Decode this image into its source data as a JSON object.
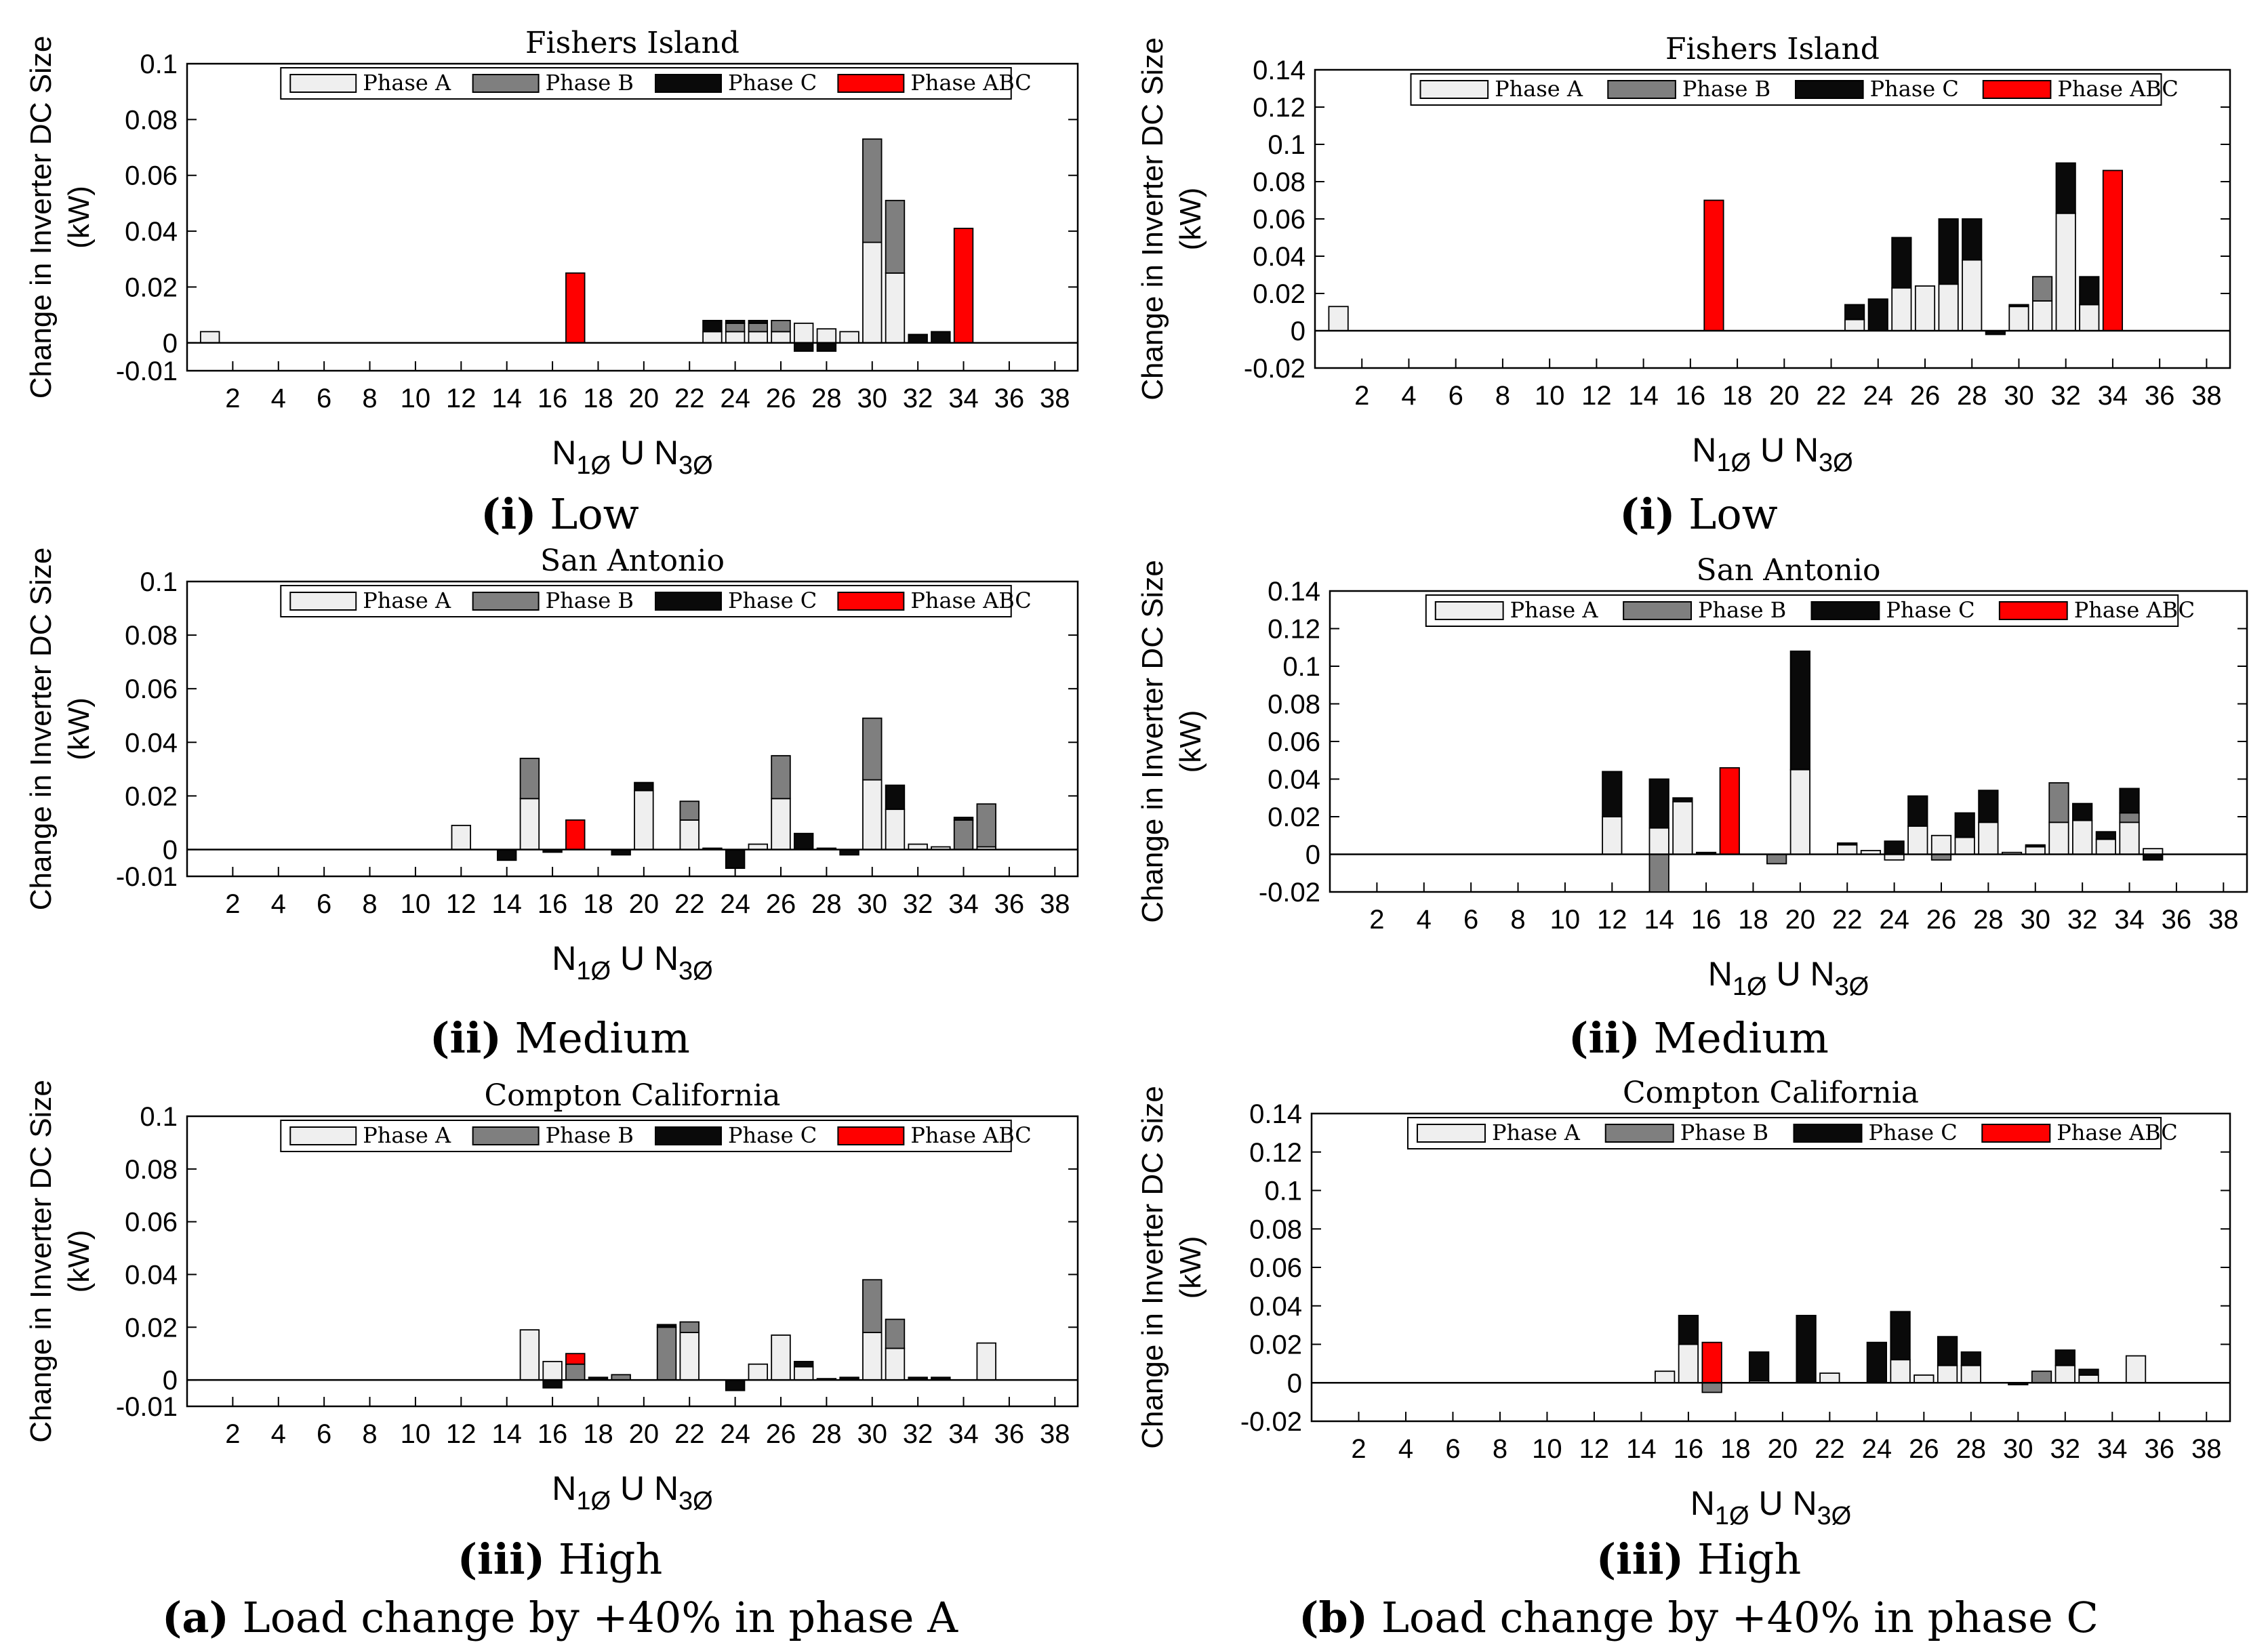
{
  "colors": {
    "phase_a": "#efefef",
    "phase_b": "#7f7f7f",
    "phase_c": "#0a0a0a",
    "phase_abc": "#ff0000",
    "axis": "#000000"
  },
  "legend_labels": [
    "Phase A",
    "Phase B",
    "Phase C",
    "Phase ABC"
  ],
  "xlabel": {
    "main": "N",
    "sub1": "1Ø",
    "union": " U N",
    "sub3": "3Ø"
  },
  "ylabel": {
    "line1": "Change in Inverter DC Size",
    "line2": "(kW)"
  },
  "captions": {
    "a": {
      "bold": "(a)",
      "text": " Load change by +40% in phase A"
    },
    "b": {
      "bold": "(b)",
      "text": " Load change by +40% in phase C"
    }
  },
  "subcaptions": [
    {
      "bold": "(i)",
      "text": " Low"
    },
    {
      "bold": "(ii)",
      "text": " Medium"
    },
    {
      "bold": "(iii)",
      "text": " High"
    }
  ],
  "chart_data": [
    {
      "id": "a-low",
      "type": "bar",
      "stacked": true,
      "title": "Fishers Island",
      "ylim": [
        -0.01,
        0.1
      ],
      "yticks": [
        -0.01,
        0,
        0.02,
        0.04,
        0.06,
        0.08,
        0.1
      ],
      "xlim": [
        0,
        39
      ],
      "xticks": [
        2,
        4,
        6,
        8,
        10,
        12,
        14,
        16,
        18,
        20,
        22,
        24,
        26,
        28,
        30,
        32,
        34,
        36,
        38
      ],
      "legend_position": "top",
      "bars": [
        {
          "n": 1,
          "a": 0.004
        },
        {
          "n": 17,
          "abc": 0.025
        },
        {
          "n": 23,
          "a": 0.004,
          "c": 0.004
        },
        {
          "n": 24,
          "a": 0.004,
          "b": 0.003,
          "c": 0.001
        },
        {
          "n": 25,
          "a": 0.004,
          "b": 0.003,
          "c": 0.001
        },
        {
          "n": 26,
          "a": 0.004,
          "b": 0.004
        },
        {
          "n": 27,
          "a": 0.007,
          "c": -0.003
        },
        {
          "n": 28,
          "a": 0.005,
          "c": -0.003
        },
        {
          "n": 29,
          "a": 0.004
        },
        {
          "n": 30,
          "a": 0.036,
          "b": 0.037
        },
        {
          "n": 31,
          "a": 0.025,
          "b": 0.026
        },
        {
          "n": 32,
          "c": 0.003
        },
        {
          "n": 33,
          "c": 0.004
        },
        {
          "n": 34,
          "abc": 0.041
        }
      ]
    },
    {
      "id": "b-low",
      "type": "bar",
      "stacked": true,
      "title": "Fishers Island",
      "ylim": [
        -0.02,
        0.14
      ],
      "yticks": [
        -0.02,
        0,
        0.02,
        0.04,
        0.06,
        0.08,
        0.1,
        0.12,
        0.14
      ],
      "xlim": [
        0,
        39
      ],
      "xticks": [
        2,
        4,
        6,
        8,
        10,
        12,
        14,
        16,
        18,
        20,
        22,
        24,
        26,
        28,
        30,
        32,
        34,
        36,
        38
      ],
      "legend_position": "top",
      "bars": [
        {
          "n": 1,
          "a": 0.013
        },
        {
          "n": 17,
          "abc": 0.07
        },
        {
          "n": 23,
          "a": 0.006,
          "c": 0.008
        },
        {
          "n": 24,
          "c": 0.017
        },
        {
          "n": 25,
          "a": 0.023,
          "c": 0.027
        },
        {
          "n": 26,
          "a": 0.024
        },
        {
          "n": 27,
          "a": 0.025,
          "c": 0.035
        },
        {
          "n": 28,
          "a": 0.038,
          "c": 0.022
        },
        {
          "n": 29,
          "c": -0.002
        },
        {
          "n": 30,
          "a": 0.013,
          "c": 0.001
        },
        {
          "n": 31,
          "a": 0.016,
          "b": 0.013
        },
        {
          "n": 32,
          "a": 0.063,
          "c": 0.027
        },
        {
          "n": 33,
          "a": 0.014,
          "c": 0.015
        },
        {
          "n": 34,
          "abc": 0.086
        }
      ]
    },
    {
      "id": "a-medium",
      "type": "bar",
      "stacked": true,
      "title": "San Antonio",
      "ylim": [
        -0.01,
        0.1
      ],
      "yticks": [
        -0.01,
        0,
        0.02,
        0.04,
        0.06,
        0.08,
        0.1
      ],
      "xlim": [
        0,
        39
      ],
      "xticks": [
        2,
        4,
        6,
        8,
        10,
        12,
        14,
        16,
        18,
        20,
        22,
        24,
        26,
        28,
        30,
        32,
        34,
        36,
        38
      ],
      "legend_position": "top",
      "bars": [
        {
          "n": 12,
          "a": 0.009
        },
        {
          "n": 14,
          "c": -0.004
        },
        {
          "n": 15,
          "a": 0.019,
          "b": 0.015
        },
        {
          "n": 16,
          "c": -0.001
        },
        {
          "n": 17,
          "abc": 0.011
        },
        {
          "n": 19,
          "c": -0.002
        },
        {
          "n": 20,
          "a": 0.022,
          "c": 0.003
        },
        {
          "n": 22,
          "a": 0.011,
          "b": 0.007
        },
        {
          "n": 23,
          "a": 0.0005
        },
        {
          "n": 24,
          "c": -0.007
        },
        {
          "n": 25,
          "a": 0.002
        },
        {
          "n": 26,
          "a": 0.019,
          "b": 0.016
        },
        {
          "n": 27,
          "c": 0.006
        },
        {
          "n": 28,
          "a": 0.0005
        },
        {
          "n": 29,
          "c": -0.002
        },
        {
          "n": 30,
          "a": 0.026,
          "b": 0.023
        },
        {
          "n": 31,
          "a": 0.015,
          "c": 0.009
        },
        {
          "n": 32,
          "a": 0.002
        },
        {
          "n": 33,
          "a": 0.001
        },
        {
          "n": 34,
          "b": 0.011,
          "c": 0.001
        },
        {
          "n": 35,
          "a": 0.001,
          "b": 0.016
        }
      ]
    },
    {
      "id": "b-medium",
      "type": "bar",
      "stacked": true,
      "title": "San Antonio",
      "ylim": [
        -0.02,
        0.14
      ],
      "yticks": [
        -0.02,
        0,
        0.02,
        0.04,
        0.06,
        0.08,
        0.1,
        0.12,
        0.14
      ],
      "xlim": [
        0,
        39
      ],
      "xticks": [
        2,
        4,
        6,
        8,
        10,
        12,
        14,
        16,
        18,
        20,
        22,
        24,
        26,
        28,
        30,
        32,
        34,
        36,
        38
      ],
      "legend_position": "top",
      "bars": [
        {
          "n": 12,
          "a": 0.02,
          "c": 0.024
        },
        {
          "n": 14,
          "a": 0.014,
          "b": -0.02,
          "c": 0.026
        },
        {
          "n": 15,
          "a": 0.028,
          "c": 0.002
        },
        {
          "n": 16,
          "c": 0.001
        },
        {
          "n": 17,
          "abc": 0.046
        },
        {
          "n": 19,
          "b": -0.005
        },
        {
          "n": 20,
          "a": 0.045,
          "c": 0.063
        },
        {
          "n": 22,
          "a": 0.005,
          "c": 0.001
        },
        {
          "n": 23,
          "a": 0.002
        },
        {
          "n": 24,
          "a": -0.003,
          "c": 0.007
        },
        {
          "n": 25,
          "a": 0.015,
          "c": 0.016
        },
        {
          "n": 26,
          "a": 0.01,
          "b": -0.003
        },
        {
          "n": 27,
          "a": 0.009,
          "c": 0.013
        },
        {
          "n": 28,
          "a": 0.017,
          "c": 0.017
        },
        {
          "n": 29,
          "a": 0.001
        },
        {
          "n": 30,
          "a": 0.004,
          "c": 0.001
        },
        {
          "n": 31,
          "a": 0.017,
          "b": 0.021
        },
        {
          "n": 32,
          "a": 0.018,
          "c": 0.009
        },
        {
          "n": 33,
          "a": 0.008,
          "c": 0.004
        },
        {
          "n": 34,
          "a": 0.017,
          "b": 0.005,
          "c": 0.013
        },
        {
          "n": 35,
          "a": 0.003,
          "c": -0.003
        }
      ]
    },
    {
      "id": "a-high",
      "type": "bar",
      "stacked": true,
      "title": "Compton California",
      "ylim": [
        -0.01,
        0.1
      ],
      "yticks": [
        -0.01,
        0,
        0.02,
        0.04,
        0.06,
        0.08,
        0.1
      ],
      "xlim": [
        0,
        39
      ],
      "xticks": [
        2,
        4,
        6,
        8,
        10,
        12,
        14,
        16,
        18,
        20,
        22,
        24,
        26,
        28,
        30,
        32,
        34,
        36,
        38
      ],
      "legend_position": "top",
      "bars": [
        {
          "n": 15,
          "a": 0.019
        },
        {
          "n": 16,
          "a": 0.007,
          "c": -0.003
        },
        {
          "n": 17,
          "b": 0.006,
          "abc": 0.004
        },
        {
          "n": 18,
          "c": 0.001
        },
        {
          "n": 19,
          "b": 0.002
        },
        {
          "n": 21,
          "b": 0.02,
          "c": 0.001
        },
        {
          "n": 22,
          "a": 0.018,
          "b": 0.004
        },
        {
          "n": 24,
          "c": -0.004
        },
        {
          "n": 25,
          "a": 0.006
        },
        {
          "n": 26,
          "a": 0.017
        },
        {
          "n": 27,
          "a": 0.005,
          "c": 0.002
        },
        {
          "n": 28,
          "a": 0.0005
        },
        {
          "n": 29,
          "c": 0.001
        },
        {
          "n": 30,
          "a": 0.018,
          "b": 0.02
        },
        {
          "n": 31,
          "a": 0.012,
          "b": 0.011
        },
        {
          "n": 32,
          "c": 0.001
        },
        {
          "n": 33,
          "c": 0.001
        },
        {
          "n": 35,
          "a": 0.014
        }
      ]
    },
    {
      "id": "b-high",
      "type": "bar",
      "stacked": true,
      "title": "Compton California",
      "ylim": [
        -0.02,
        0.14
      ],
      "yticks": [
        -0.02,
        0,
        0.02,
        0.04,
        0.06,
        0.08,
        0.1,
        0.12,
        0.14
      ],
      "xlim": [
        0,
        39
      ],
      "xticks": [
        2,
        4,
        6,
        8,
        10,
        12,
        14,
        16,
        18,
        20,
        22,
        24,
        26,
        28,
        30,
        32,
        34,
        36,
        38
      ],
      "legend_position": "top",
      "bars": [
        {
          "n": 15,
          "a": 0.006
        },
        {
          "n": 16,
          "a": 0.02,
          "c": 0.015
        },
        {
          "n": 17,
          "b": -0.005,
          "abc": 0.021
        },
        {
          "n": 19,
          "a": 0.001,
          "c": 0.015
        },
        {
          "n": 21,
          "c": 0.035
        },
        {
          "n": 22,
          "a": 0.005
        },
        {
          "n": 24,
          "c": 0.021
        },
        {
          "n": 25,
          "a": 0.012,
          "c": 0.025
        },
        {
          "n": 26,
          "a": 0.004
        },
        {
          "n": 27,
          "a": 0.009,
          "c": 0.015
        },
        {
          "n": 28,
          "a": 0.009,
          "c": 0.007
        },
        {
          "n": 30,
          "c": -0.001
        },
        {
          "n": 31,
          "b": 0.006
        },
        {
          "n": 32,
          "a": 0.009,
          "c": 0.008
        },
        {
          "n": 33,
          "a": 0.004,
          "c": 0.003
        },
        {
          "n": 35,
          "a": 0.014
        }
      ]
    }
  ]
}
